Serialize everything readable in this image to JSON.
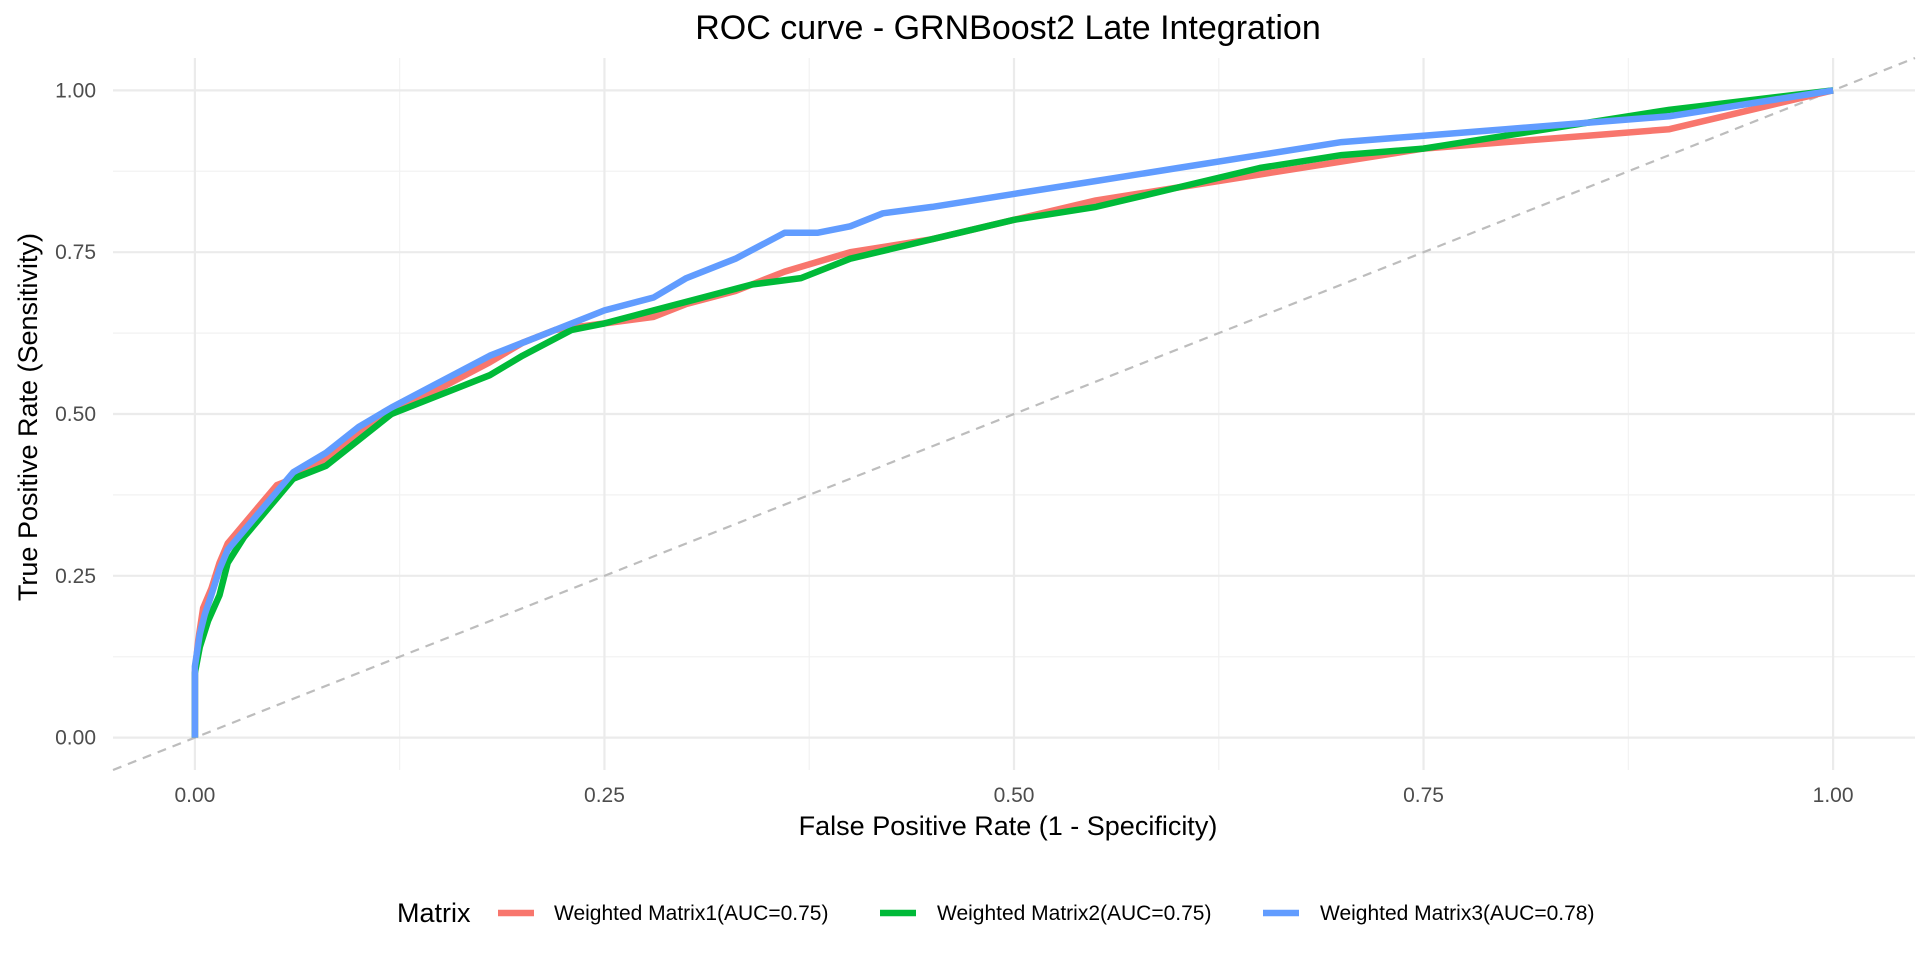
{
  "chart_data": {
    "type": "line",
    "title": "ROC curve - GRNBoost2 Late Integration",
    "xlabel": "False Positive Rate (1 - Specificity)",
    "ylabel": "True Positive Rate (Sensitivity)",
    "xlim": [
      -0.05,
      1.05
    ],
    "ylim": [
      -0.05,
      1.05
    ],
    "x_ticks": [
      0,
      0.25,
      0.5,
      0.75,
      1
    ],
    "x_tick_labels": [
      "0.00",
      "0.25",
      "0.50",
      "0.75",
      "1.00"
    ],
    "y_ticks": [
      0,
      0.25,
      0.5,
      0.75,
      1
    ],
    "y_tick_labels": [
      "0.00",
      "0.25",
      "0.50",
      "0.75",
      "1.00"
    ],
    "grid": true,
    "legend": {
      "title": "Matrix",
      "position": "bottom"
    },
    "reference_line": {
      "x": [
        0,
        1
      ],
      "y": [
        0,
        1
      ],
      "color": "#bdbdbd",
      "style": "dashed"
    },
    "series": [
      {
        "name": "Weighted Matrix1(AUC=0.75)",
        "color": "#F8766D",
        "x": [
          0,
          0,
          0.002,
          0.005,
          0.01,
          0.015,
          0.02,
          0.03,
          0.04,
          0.05,
          0.06,
          0.08,
          0.1,
          0.12,
          0.15,
          0.18,
          0.2,
          0.22,
          0.25,
          0.28,
          0.3,
          0.33,
          0.36,
          0.4,
          0.45,
          0.5,
          0.55,
          0.6,
          0.65,
          0.7,
          0.75,
          0.8,
          0.85,
          0.9,
          0.95,
          1
        ],
        "y": [
          0,
          0.1,
          0.15,
          0.2,
          0.23,
          0.27,
          0.3,
          0.33,
          0.36,
          0.39,
          0.4,
          0.43,
          0.47,
          0.5,
          0.54,
          0.58,
          0.61,
          0.63,
          0.64,
          0.65,
          0.67,
          0.69,
          0.72,
          0.75,
          0.77,
          0.8,
          0.83,
          0.85,
          0.87,
          0.89,
          0.91,
          0.92,
          0.93,
          0.94,
          0.97,
          1
        ]
      },
      {
        "name": "Weighted Matrix2(AUC=0.75)",
        "color": "#00BA38",
        "x": [
          0,
          0,
          0.003,
          0.008,
          0.015,
          0.02,
          0.03,
          0.04,
          0.05,
          0.06,
          0.08,
          0.1,
          0.12,
          0.15,
          0.18,
          0.2,
          0.23,
          0.25,
          0.28,
          0.31,
          0.34,
          0.37,
          0.4,
          0.45,
          0.5,
          0.55,
          0.6,
          0.65,
          0.7,
          0.75,
          0.8,
          0.85,
          0.9,
          1
        ],
        "y": [
          0,
          0.1,
          0.14,
          0.18,
          0.22,
          0.27,
          0.31,
          0.34,
          0.37,
          0.4,
          0.42,
          0.46,
          0.5,
          0.53,
          0.56,
          0.59,
          0.63,
          0.64,
          0.66,
          0.68,
          0.7,
          0.71,
          0.74,
          0.77,
          0.8,
          0.82,
          0.85,
          0.88,
          0.9,
          0.91,
          0.93,
          0.95,
          0.97,
          1
        ]
      },
      {
        "name": "Weighted Matrix3(AUC=0.78)",
        "color": "#619CFF",
        "x": [
          0,
          0,
          0.003,
          0.006,
          0.01,
          0.015,
          0.02,
          0.03,
          0.04,
          0.05,
          0.06,
          0.08,
          0.1,
          0.12,
          0.15,
          0.18,
          0.2,
          0.22,
          0.25,
          0.28,
          0.3,
          0.33,
          0.36,
          0.38,
          0.4,
          0.42,
          0.45,
          0.5,
          0.55,
          0.6,
          0.65,
          0.7,
          0.75,
          0.8,
          0.85,
          0.9,
          1
        ],
        "y": [
          0,
          0.11,
          0.16,
          0.19,
          0.22,
          0.26,
          0.29,
          0.32,
          0.35,
          0.38,
          0.41,
          0.44,
          0.48,
          0.51,
          0.55,
          0.59,
          0.61,
          0.63,
          0.66,
          0.68,
          0.71,
          0.74,
          0.78,
          0.78,
          0.79,
          0.81,
          0.82,
          0.84,
          0.86,
          0.88,
          0.9,
          0.92,
          0.93,
          0.94,
          0.95,
          0.96,
          1
        ]
      }
    ]
  }
}
